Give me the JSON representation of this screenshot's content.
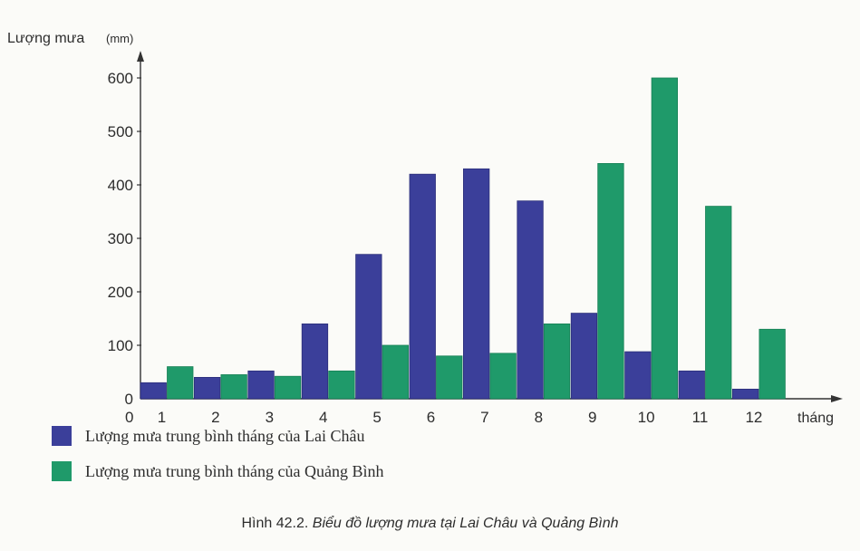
{
  "chart_data": {
    "type": "bar",
    "ylabel": "Lượng mưa",
    "yunit": "(mm)",
    "xlabel": "tháng",
    "origin_label": "0",
    "categories": [
      "1",
      "2",
      "3",
      "4",
      "5",
      "6",
      "7",
      "8",
      "9",
      "10",
      "11",
      "12"
    ],
    "ylim": [
      0,
      600
    ],
    "yticks": [
      "0",
      "100",
      "200",
      "300",
      "400",
      "500",
      "600"
    ],
    "grid": false,
    "legend_position": "bottom-left",
    "series": [
      {
        "name": "Lượng mưa trung bình tháng của Lai Châu",
        "color": "#3b3f9a",
        "values": [
          30,
          40,
          52,
          140,
          270,
          420,
          430,
          370,
          160,
          88,
          52,
          18
        ]
      },
      {
        "name": "Lượng mưa trung bình tháng của Quảng Bình",
        "color": "#1f9a6a",
        "values": [
          60,
          45,
          42,
          52,
          100,
          80,
          85,
          140,
          440,
          600,
          360,
          130
        ]
      }
    ]
  },
  "caption": {
    "lead": "Hình 42.2.",
    "title": "Biểu đồ lượng mưa tại Lai Châu và Quảng Bình"
  }
}
